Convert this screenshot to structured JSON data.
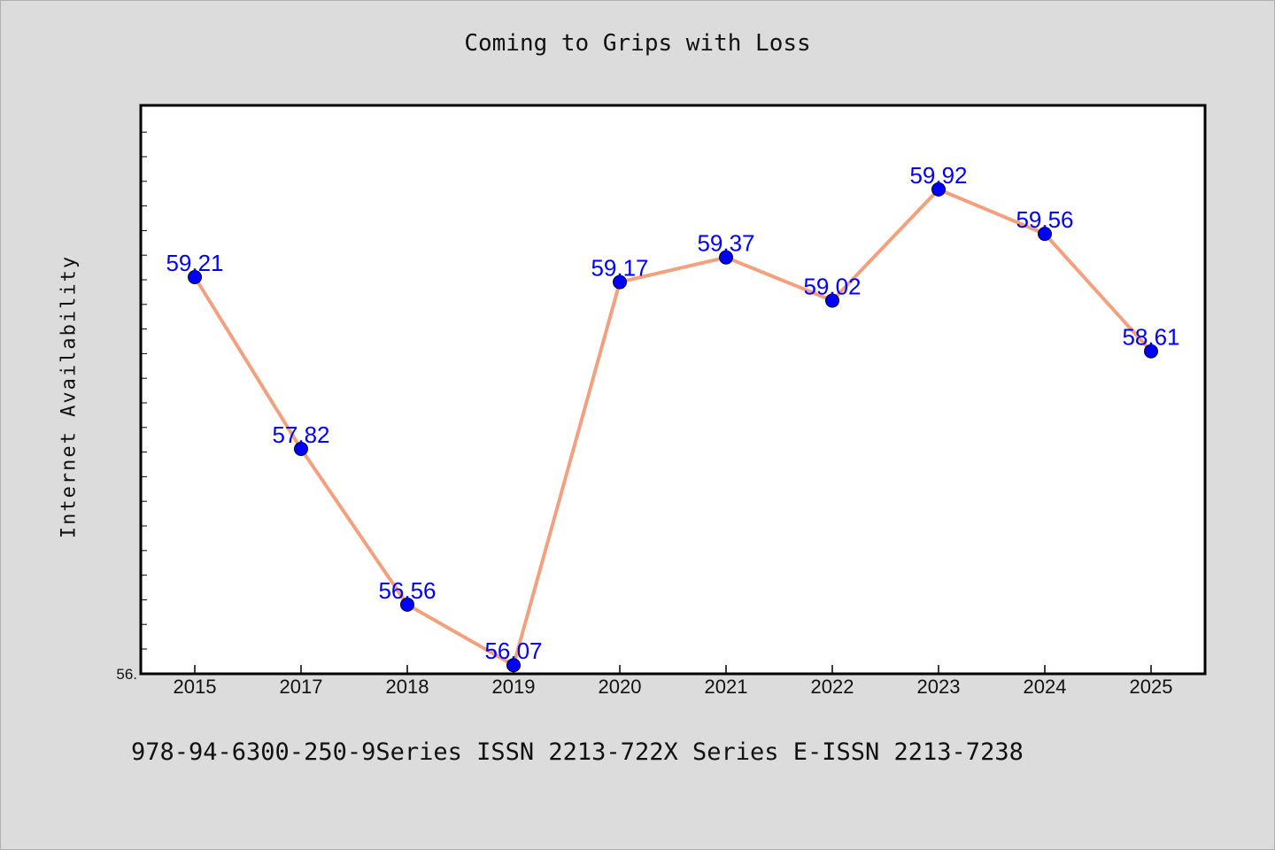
{
  "title": "Coming to Grips with Loss",
  "footer": "978-94-6300-250-9Series ISSN 2213-722X Series E-ISSN 2213-7238",
  "colors": {
    "background": "#dcdcdc",
    "plot_background": "#ffffff",
    "line": "#f4a07e",
    "marker": "#0000ff",
    "data_label": "#0000ff",
    "frame": "#000000"
  },
  "chart_data": {
    "type": "line",
    "title": "Coming to Grips with Loss",
    "xlabel": "",
    "ylabel": "Internet Availability",
    "categories": [
      "2015",
      "2017",
      "2018",
      "2019",
      "2020",
      "2021",
      "2022",
      "2023",
      "2024",
      "2025"
    ],
    "series": [
      {
        "values": [
          59.21,
          57.82,
          56.56,
          56.07,
          59.17,
          59.37,
          59.02,
          59.92,
          59.56,
          58.61
        ],
        "labels": [
          "59.21",
          "57.82",
          "56.56",
          "56.07",
          "59.17",
          "59.37",
          "59.02",
          "59.92",
          "59.56",
          "58.61"
        ]
      }
    ],
    "ylim": [
      56.0,
      60.6
    ],
    "y_tick_labels": [
      "56."
    ],
    "markers": true,
    "grid": false
  }
}
